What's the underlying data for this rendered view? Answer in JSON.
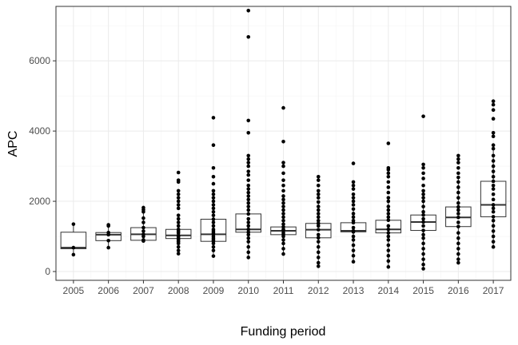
{
  "chart_data": {
    "type": "box",
    "title": "",
    "xlabel": "Funding period",
    "ylabel": "APC",
    "ylim": [
      -250,
      7550
    ],
    "yticks": [
      0,
      2000,
      4000,
      6000
    ],
    "yticks_minor": [
      1000,
      3000,
      5000,
      7000
    ],
    "grid": true,
    "theme": "bw",
    "categories": [
      "2005",
      "2006",
      "2007",
      "2008",
      "2009",
      "2010",
      "2011",
      "2012",
      "2013",
      "2014",
      "2015",
      "2016",
      "2017"
    ],
    "boxes": [
      {
        "category": "2005",
        "q1": 650,
        "median": 680,
        "q3": 1120,
        "whisker_low": 480,
        "whisker_high": 1350
      },
      {
        "category": "2006",
        "q1": 880,
        "median": 1050,
        "q3": 1110,
        "whisker_low": 680,
        "whisker_high": 1330
      },
      {
        "category": "2007",
        "q1": 890,
        "median": 1060,
        "q3": 1250,
        "whisker_low": 870,
        "whisker_high": 1820
      },
      {
        "category": "2008",
        "q1": 940,
        "median": 1030,
        "q3": 1200,
        "whisker_low": 510,
        "whisker_high": 1600
      },
      {
        "category": "2009",
        "q1": 860,
        "median": 1060,
        "q3": 1490,
        "whisker_low": 440,
        "whisker_high": 2300
      },
      {
        "category": "2010",
        "q1": 1120,
        "median": 1200,
        "q3": 1640,
        "whisker_low": 400,
        "whisker_high": 2450
      },
      {
        "category": "2011",
        "q1": 1050,
        "median": 1160,
        "q3": 1270,
        "whisker_low": 500,
        "whisker_high": 1600
      },
      {
        "category": "2012",
        "q1": 960,
        "median": 1190,
        "q3": 1370,
        "whisker_low": 150,
        "whisker_high": 1980
      },
      {
        "category": "2013",
        "q1": 1130,
        "median": 1160,
        "q3": 1390,
        "whisker_low": 280,
        "whisker_high": 1780
      },
      {
        "category": "2014",
        "q1": 1100,
        "median": 1200,
        "q3": 1460,
        "whisker_low": 130,
        "whisker_high": 2000
      },
      {
        "category": "2015",
        "q1": 1170,
        "median": 1410,
        "q3": 1610,
        "whisker_low": 80,
        "whisker_high": 2300
      },
      {
        "category": "2016",
        "q1": 1280,
        "median": 1540,
        "q3": 1840,
        "whisker_low": 250,
        "whisker_high": 2680
      },
      {
        "category": "2017",
        "q1": 1560,
        "median": 1900,
        "q3": 2570,
        "whisker_low": 700,
        "whisker_high": 3600
      }
    ],
    "points": [
      {
        "category": "2005",
        "values": [
          480,
          680,
          1350
        ]
      },
      {
        "category": "2006",
        "values": [
          680,
          880,
          1050,
          1110,
          1300,
          1330
        ]
      },
      {
        "category": "2007",
        "values": [
          870,
          900,
          1000,
          1060,
          1150,
          1250,
          1400,
          1520,
          1700,
          1760,
          1820
        ]
      },
      {
        "category": "2008",
        "values": [
          510,
          600,
          700,
          800,
          850,
          900,
          950,
          1000,
          1030,
          1100,
          1150,
          1200,
          1300,
          1400,
          1500,
          1600,
          1800,
          1900,
          2000,
          2100,
          2200,
          2300,
          2550,
          2600,
          2820
        ]
      },
      {
        "category": "2009",
        "values": [
          440,
          600,
          700,
          800,
          860,
          900,
          950,
          1000,
          1060,
          1100,
          1150,
          1200,
          1300,
          1400,
          1490,
          1600,
          1700,
          1800,
          1900,
          2000,
          2100,
          2200,
          2300,
          2500,
          2700,
          2950,
          3600,
          4380
        ]
      },
      {
        "category": "2010",
        "values": [
          400,
          550,
          700,
          850,
          950,
          1050,
          1120,
          1200,
          1300,
          1400,
          1500,
          1640,
          1750,
          1850,
          1950,
          2050,
          2150,
          2250,
          2350,
          2450,
          2600,
          2750,
          2850,
          3000,
          3100,
          3200,
          3300,
          3950,
          4300,
          6680,
          7430
        ]
      },
      {
        "category": "2011",
        "values": [
          500,
          650,
          800,
          900,
          1000,
          1050,
          1100,
          1160,
          1200,
          1270,
          1350,
          1450,
          1550,
          1650,
          1750,
          1850,
          1950,
          2050,
          2150,
          2300,
          2450,
          2600,
          2800,
          3000,
          3100,
          3700,
          4660
        ]
      },
      {
        "category": "2012",
        "values": [
          150,
          250,
          400,
          550,
          700,
          850,
          960,
          1050,
          1190,
          1300,
          1370,
          1450,
          1550,
          1650,
          1750,
          1850,
          1980,
          2100,
          2200,
          2300,
          2450,
          2600,
          2700
        ]
      },
      {
        "category": "2013",
        "values": [
          280,
          450,
          600,
          750,
          900,
          1000,
          1130,
          1160,
          1250,
          1390,
          1450,
          1550,
          1650,
          1780,
          1900,
          2000,
          2100,
          2200,
          2350,
          2450,
          2550,
          3080
        ]
      },
      {
        "category": "2014",
        "values": [
          130,
          300,
          450,
          600,
          750,
          900,
          1000,
          1100,
          1200,
          1300,
          1460,
          1550,
          1650,
          1750,
          1850,
          2000,
          2100,
          2250,
          2400,
          2550,
          2700,
          2800,
          2900,
          2950,
          3650
        ]
      },
      {
        "category": "2015",
        "values": [
          80,
          200,
          350,
          500,
          650,
          800,
          950,
          1050,
          1170,
          1300,
          1410,
          1500,
          1610,
          1700,
          1850,
          2000,
          2100,
          2200,
          2300,
          2450,
          2650,
          2800,
          2950,
          3050,
          4420
        ]
      },
      {
        "category": "2016",
        "values": [
          250,
          350,
          500,
          650,
          800,
          950,
          1100,
          1280,
          1400,
          1540,
          1650,
          1750,
          1840,
          1950,
          2100,
          2250,
          2400,
          2550,
          2680,
          2800,
          2950,
          3100,
          3200,
          3300
        ]
      },
      {
        "category": "2017",
        "values": [
          700,
          850,
          1000,
          1150,
          1300,
          1450,
          1560,
          1700,
          1800,
          1900,
          2050,
          2200,
          2350,
          2450,
          2570,
          2700,
          2850,
          3000,
          3150,
          3300,
          3500,
          3600,
          3850,
          3950,
          4350,
          4600,
          4750,
          4850
        ]
      }
    ]
  }
}
